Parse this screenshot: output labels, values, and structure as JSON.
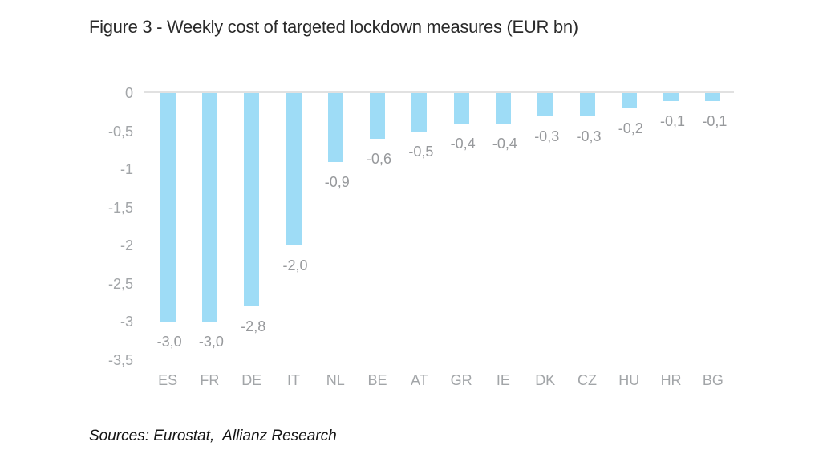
{
  "title": "Figure 3 - Weekly cost of targeted lockdown measures (EUR bn)",
  "sources": "Sources: Eurostat,  Allianz Research",
  "chart_data": {
    "type": "bar",
    "title": "Figure 3 - Weekly cost of targeted lockdown measures (EUR bn)",
    "xlabel": "",
    "ylabel": "",
    "categories": [
      "ES",
      "FR",
      "DE",
      "IT",
      "NL",
      "BE",
      "AT",
      "GR",
      "IE",
      "DK",
      "CZ",
      "HU",
      "HR",
      "BG"
    ],
    "values": [
      -3.0,
      -3.0,
      -2.8,
      -2.0,
      -0.9,
      -0.6,
      -0.5,
      -0.4,
      -0.4,
      -0.3,
      -0.3,
      -0.2,
      -0.1,
      -0.1
    ],
    "data_labels": [
      "-3,0",
      "-3,0",
      "-2,8",
      "-2,0",
      "-0,9",
      "-0,6",
      "-0,5",
      "-0,4",
      "-0,4",
      "-0,3",
      "-0,3",
      "-0,2",
      "-0,1",
      "-0,1"
    ],
    "y_ticks": [
      {
        "value": 0,
        "label": "0"
      },
      {
        "value": -0.5,
        "label": "-0,5"
      },
      {
        "value": -1,
        "label": "-1"
      },
      {
        "value": -1.5,
        "label": "-1,5"
      },
      {
        "value": -2,
        "label": "-2"
      },
      {
        "value": -2.5,
        "label": "-2,5"
      },
      {
        "value": -3,
        "label": "-3"
      },
      {
        "value": -3.5,
        "label": "-3,5"
      }
    ],
    "ylim": [
      -3.5,
      0
    ],
    "grid": false,
    "legend": false,
    "bar_color": "#9edcf6",
    "axis_line_color": "#e1e1e1",
    "tick_label_color": "#a2a5a8",
    "data_label_color": "#97999c"
  }
}
